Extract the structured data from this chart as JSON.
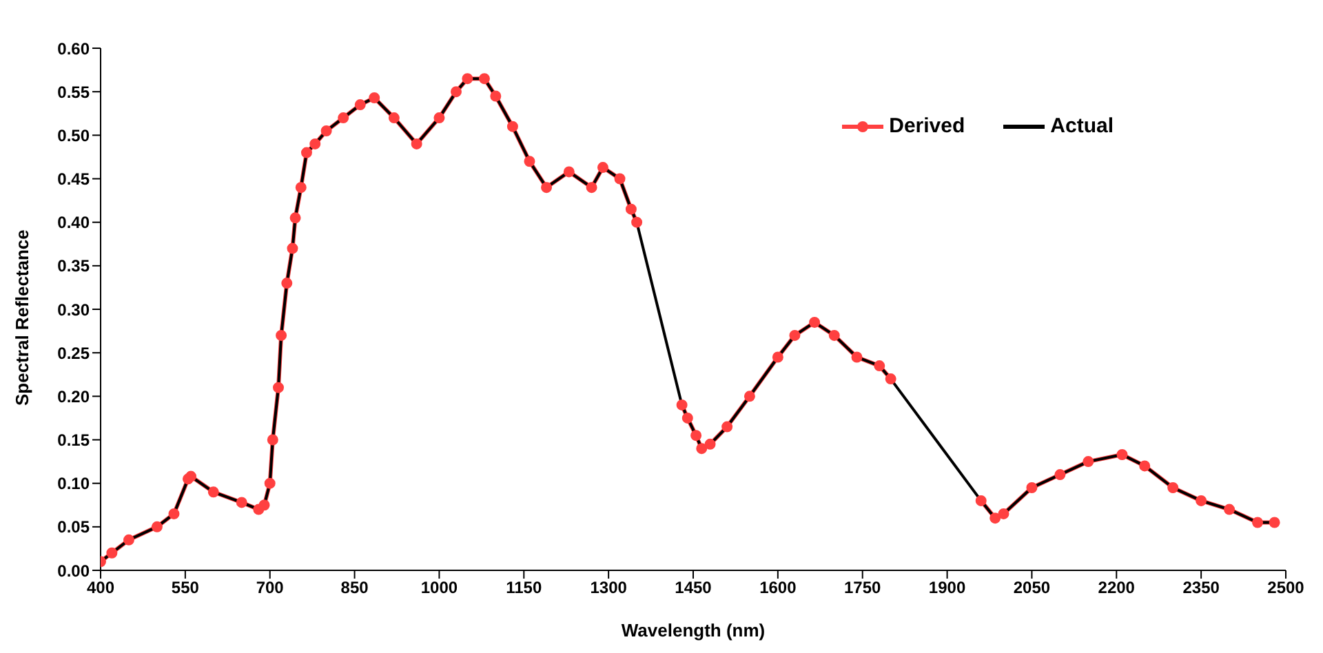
{
  "chart_data": {
    "type": "line",
    "xlabel": "Wavelength (nm)",
    "ylabel": "Spectral Reflectance",
    "x": [
      400,
      420,
      450,
      500,
      530,
      555,
      560,
      600,
      650,
      680,
      690,
      700,
      705,
      715,
      720,
      730,
      740,
      745,
      755,
      765,
      780,
      800,
      830,
      860,
      885,
      920,
      960,
      1000,
      1030,
      1050,
      1080,
      1100,
      1130,
      1160,
      1190,
      1230,
      1270,
      1290,
      1320,
      1340,
      1350,
      1390,
      1430,
      1440,
      1455,
      1465,
      1480,
      1510,
      1550,
      1600,
      1630,
      1665,
      1700,
      1740,
      1780,
      1800,
      1880,
      1960,
      1985,
      2000,
      2050,
      2100,
      2150,
      2210,
      2250,
      2300,
      2350,
      2400,
      2450,
      2480
    ],
    "series": [
      {
        "name": "Derived",
        "color": "#ff4040",
        "marker": "circle",
        "values": [
          0.01,
          0.02,
          0.035,
          0.05,
          0.065,
          0.105,
          0.108,
          0.09,
          0.078,
          0.07,
          0.075,
          0.1,
          0.15,
          0.21,
          0.27,
          0.33,
          0.37,
          0.405,
          0.44,
          0.48,
          0.49,
          0.505,
          0.52,
          0.535,
          0.543,
          0.52,
          0.49,
          0.52,
          0.55,
          0.565,
          0.565,
          0.545,
          0.51,
          0.47,
          0.44,
          0.458,
          0.44,
          0.463,
          0.45,
          0.415,
          0.4,
          null,
          0.19,
          0.175,
          0.155,
          0.14,
          0.145,
          0.165,
          0.2,
          0.245,
          0.27,
          0.285,
          0.27,
          0.245,
          0.235,
          0.22,
          null,
          0.08,
          0.06,
          0.065,
          0.095,
          0.11,
          0.125,
          0.133,
          0.12,
          0.095,
          0.08,
          0.07,
          0.055,
          0.055
        ]
      },
      {
        "name": "Actual",
        "color": "#000000",
        "marker": "none",
        "values": [
          0.01,
          0.02,
          0.035,
          0.05,
          0.065,
          0.105,
          0.108,
          0.09,
          0.078,
          0.07,
          0.075,
          0.1,
          0.15,
          0.21,
          0.27,
          0.33,
          0.37,
          0.405,
          0.44,
          0.48,
          0.49,
          0.505,
          0.52,
          0.535,
          0.543,
          0.52,
          0.49,
          0.52,
          0.55,
          0.565,
          0.565,
          0.545,
          0.51,
          0.47,
          0.44,
          0.458,
          0.44,
          0.463,
          0.45,
          0.415,
          0.4,
          0.295,
          0.19,
          0.175,
          0.155,
          0.14,
          0.145,
          0.165,
          0.2,
          0.245,
          0.27,
          0.285,
          0.27,
          0.245,
          0.235,
          0.22,
          0.15,
          0.08,
          0.06,
          0.065,
          0.095,
          0.11,
          0.125,
          0.133,
          0.12,
          0.095,
          0.08,
          0.07,
          0.055,
          0.055
        ]
      }
    ],
    "xlim": [
      400,
      2500
    ],
    "xticks": [
      400,
      550,
      700,
      850,
      1000,
      1150,
      1300,
      1450,
      1600,
      1750,
      1900,
      2050,
      2200,
      2350,
      2500
    ],
    "ylim": [
      0,
      0.6
    ],
    "yticks": [
      {
        "value": 0,
        "label": "0.00"
      },
      {
        "value": 0.05,
        "label": "0.05"
      },
      {
        "value": 0.1,
        "label": "0.10"
      },
      {
        "value": 0.15,
        "label": "0.15"
      },
      {
        "value": 0.2,
        "label": "0.20"
      },
      {
        "value": 0.25,
        "label": "0.25"
      },
      {
        "value": 0.3,
        "label": "0.30"
      },
      {
        "value": 0.35,
        "label": "0.35"
      },
      {
        "value": 0.4,
        "label": "0.40"
      },
      {
        "value": 0.45,
        "label": "0.45"
      },
      {
        "value": 0.5,
        "label": "0.50"
      },
      {
        "value": 0.55,
        "label": "0.55"
      },
      {
        "value": 0.6,
        "label": "0.60"
      }
    ],
    "grid": false,
    "legend": "top right"
  }
}
